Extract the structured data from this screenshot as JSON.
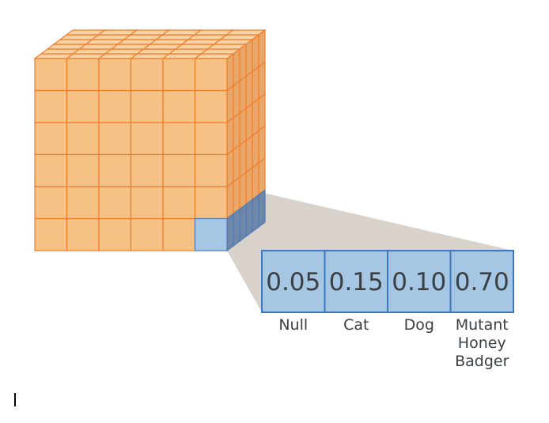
{
  "diagram": {
    "probabilities": [
      {
        "value": "0.05",
        "label_lines": [
          "Null"
        ]
      },
      {
        "value": "0.15",
        "label_lines": [
          "Cat"
        ]
      },
      {
        "value": "0.10",
        "label_lines": [
          "Dog"
        ]
      },
      {
        "value": "0.70",
        "label_lines": [
          "Mutant",
          "Honey",
          "Badger"
        ]
      }
    ],
    "colors": {
      "cube_front": "#f6c184",
      "cube_top": "#f9d3a6",
      "cube_side": "#e8a86c",
      "cube_lines": "#f07d2a",
      "selected_front": "#a6c7e4",
      "selected_side": "#6f88a8",
      "selected_lines": "#4d79b8",
      "projection": "#d9d2cb",
      "box_fill": "#a6c7e4",
      "box_border": "#3b79c0"
    }
  }
}
